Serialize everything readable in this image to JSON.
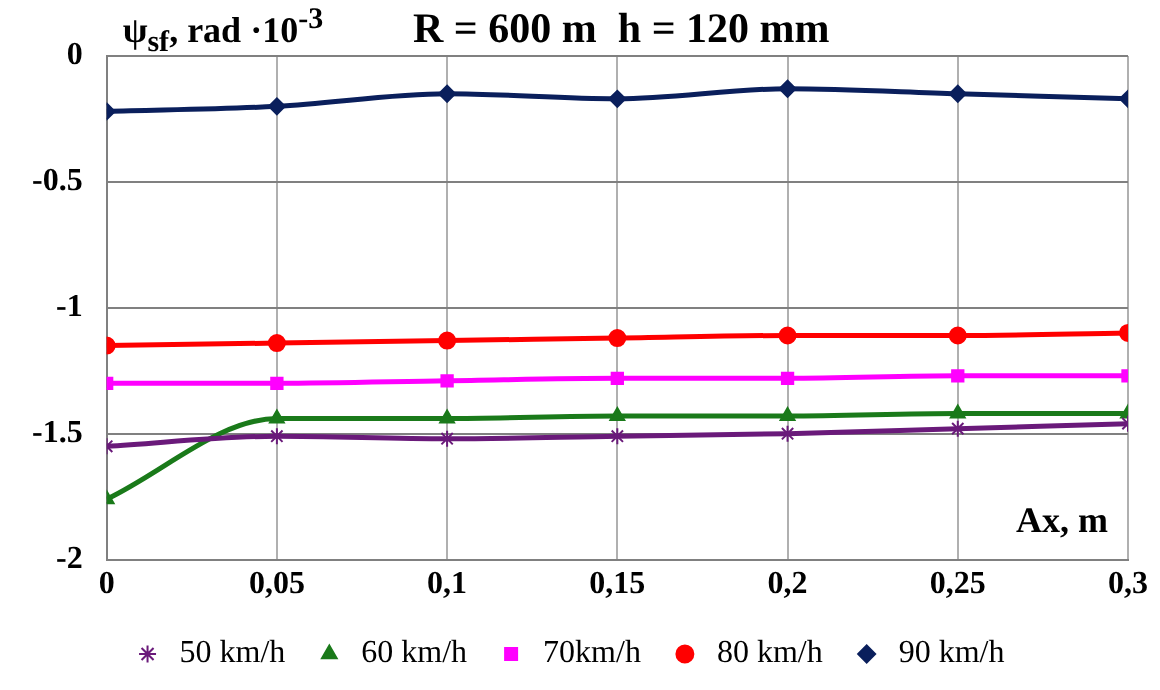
{
  "chart_data": {
    "type": "line",
    "title": "R = 600 m  h = 120 mm",
    "ylabel": "ψ$_{sf}$, rad ·10$^{-3}$",
    "xlabel": "Ax, m",
    "x": [
      0,
      0.05,
      0.1,
      0.15,
      0.2,
      0.25,
      0.3
    ],
    "xlim": [
      0,
      0.3
    ],
    "xticks": [
      0,
      {
        "value": 0.05,
        "label": "0,05"
      },
      {
        "value": 0.1,
        "label": "0,1"
      },
      {
        "value": 0.15,
        "label": "0,15"
      },
      {
        "value": 0.2,
        "label": "0,2"
      },
      {
        "value": 0.25,
        "label": "0,25"
      },
      {
        "value": 0.3,
        "label": "0,3"
      }
    ],
    "ylim": [
      -2,
      0
    ],
    "yticks": [
      -2,
      -1.5,
      -1,
      -0.5,
      0
    ],
    "grid": true,
    "legend": "bottom",
    "series": [
      {
        "name": "50 km/h",
        "color": "#6a1a7a",
        "marker": "cross",
        "values": [
          -1.55,
          -1.51,
          -1.52,
          -1.51,
          -1.5,
          -1.48,
          -1.46
        ]
      },
      {
        "name": "60 km/h",
        "color": "#1a7a1a",
        "marker": "triangle",
        "values": [
          -1.76,
          -1.44,
          -1.44,
          -1.43,
          -1.43,
          -1.42,
          -1.42
        ]
      },
      {
        "name": "70km/h",
        "color": "#ff00ff",
        "marker": "square",
        "values": [
          -1.3,
          -1.3,
          -1.29,
          -1.28,
          -1.28,
          -1.27,
          -1.27
        ]
      },
      {
        "name": "80 km/h",
        "color": "#ff0000",
        "marker": "circle",
        "values": [
          -1.15,
          -1.14,
          -1.13,
          -1.12,
          -1.11,
          -1.11,
          -1.1
        ]
      },
      {
        "name": "90 km/h",
        "color": "#0a1f5c",
        "marker": "diamond",
        "values": [
          -0.22,
          -0.2,
          -0.15,
          -0.17,
          -0.13,
          -0.15,
          -0.17
        ]
      }
    ]
  }
}
